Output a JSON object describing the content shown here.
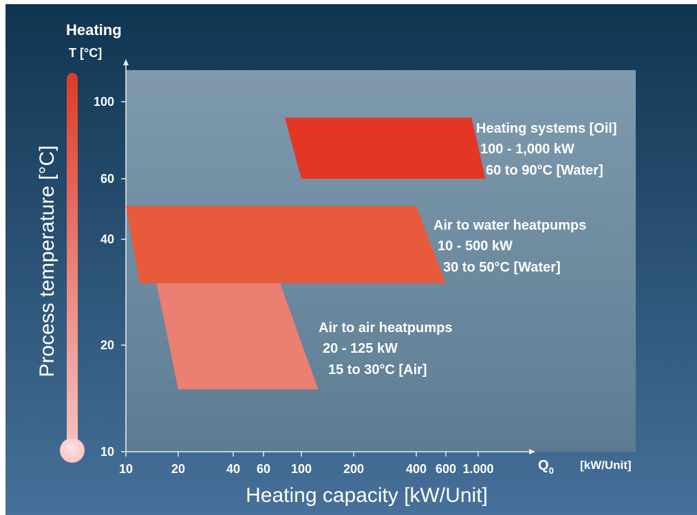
{
  "chart_data": {
    "type": "area",
    "x_scale": "log",
    "y_scale": "log",
    "xlim": [
      10,
      2000
    ],
    "ylim": [
      10,
      100
    ],
    "x_ticks": [
      "10",
      "20",
      "40",
      "60",
      "100",
      "200",
      "400",
      "600",
      "1.000"
    ],
    "x_tick_values": [
      10,
      20,
      40,
      60,
      100,
      200,
      400,
      600,
      1000
    ],
    "y_ticks": [
      "10",
      "20",
      "40",
      "60",
      "100"
    ],
    "y_tick_values": [
      10,
      20,
      40,
      60,
      100
    ],
    "xlabel": "Heating capacity [kW/Unit]",
    "ylabel": "Process temperature [°C]",
    "x_axis_symbol": "Q",
    "x_axis_symbol_sub": "0",
    "x_axis_unit": "[kW/Unit]",
    "y_axis_header": "Heating",
    "y_axis_unit": "T [°C]",
    "grid": false,
    "regions": [
      {
        "name": "Air to air heatpumps",
        "capacity_label": "20 - 125 kW",
        "temp_label": "15 to 30°C [Air]",
        "color": "#ea7f72",
        "polygon": [
          [
            15,
            30
          ],
          [
            75,
            30
          ],
          [
            125,
            15
          ],
          [
            20,
            15
          ]
        ]
      },
      {
        "name": "Air to water heatpumps",
        "capacity_label": "10 - 500 kW",
        "temp_label": "30 to 50°C [Water]",
        "color": "#e85a3c",
        "polygon": [
          [
            10,
            50
          ],
          [
            400,
            50
          ],
          [
            600,
            30
          ],
          [
            12,
            30
          ]
        ]
      },
      {
        "name": "Heating systems [Oil]",
        "capacity_label": "100 - 1,000 kW",
        "temp_label": "60 to 90°C [Water]",
        "color": "#e43624",
        "polygon": [
          [
            80,
            90
          ],
          [
            900,
            90
          ],
          [
            1100,
            60
          ],
          [
            100,
            60
          ]
        ]
      }
    ]
  },
  "colors": {
    "background_top": "#0f3550",
    "background_bottom": "#47709a",
    "plot_area_top": "#7f9aad",
    "plot_area_bottom": "#5d7c93",
    "thermometer_top": "#dd3b28",
    "thermometer_bottom": "#f7c2c0"
  }
}
